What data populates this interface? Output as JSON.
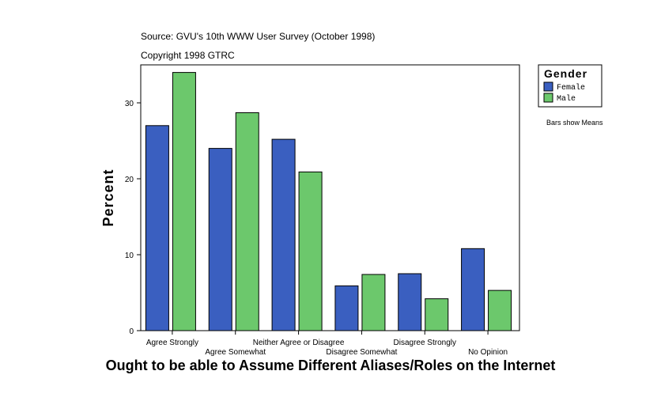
{
  "chart_data": {
    "type": "bar",
    "source_line": "Source: GVU's 10th WWW User Survey (October 1998)",
    "copyright_line": "Copyright 1998 GTRC",
    "title": "Ought to be able to Assume Different Aliases/Roles on the Internet",
    "ylabel": "Percent",
    "xlabel": "",
    "ylim": [
      0,
      35
    ],
    "yticks": [
      0,
      10,
      20,
      30
    ],
    "categories": [
      "Agree Strongly",
      "Agree Somewhat",
      "Neither Agree or Disagree",
      "Disagree Somewhat",
      "Disagree Strongly",
      "No Opinion"
    ],
    "series": [
      {
        "name": "Female",
        "color": "#3a5fc0",
        "values": [
          27.0,
          24.0,
          25.2,
          5.9,
          7.5,
          10.8
        ]
      },
      {
        "name": "Male",
        "color": "#6cc86c",
        "values": [
          34.0,
          28.7,
          20.9,
          7.4,
          4.2,
          5.3
        ]
      }
    ],
    "legend": {
      "title": "Gender",
      "position": "top-right"
    },
    "note": "Bars show Means",
    "grid": false
  }
}
